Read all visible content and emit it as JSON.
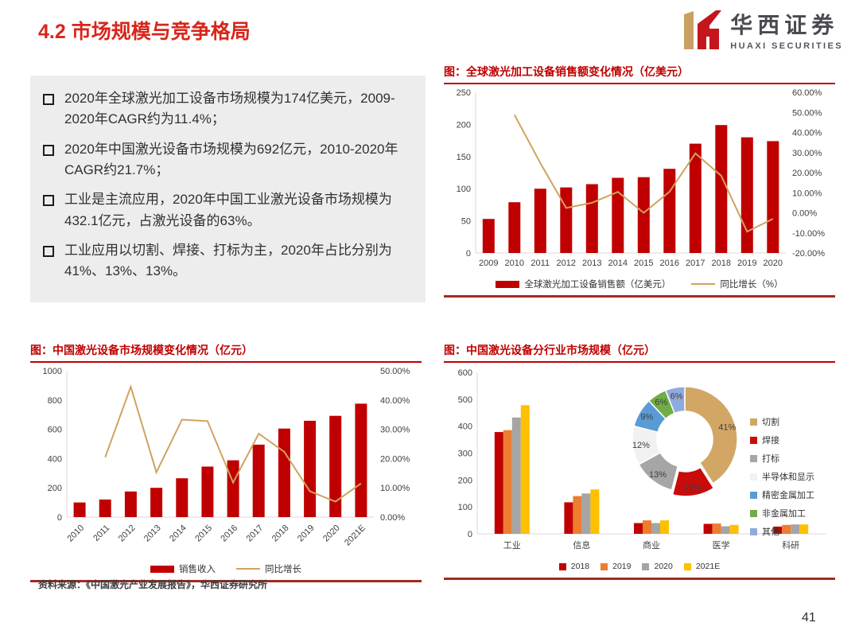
{
  "page": {
    "title": "4.2 市场规模与竞争格局",
    "source_note": "资料来源：《中国激光产业发展报告》，华西证券研究所",
    "page_number": "41"
  },
  "logo": {
    "cn": "华西证券",
    "en": "HUAXI SECURITIES"
  },
  "bullets": [
    "2020年全球激光加工设备市场规模为174亿美元，2009-2020年CAGR约为11.4%；",
    "2020年中国激光设备市场规模为692亿元，2010-2020年CAGR约21.7%；",
    "工业是主流应用，2020年中国工业激光设备市场规模为432.1亿元，占激光设备的63%。",
    "工业应用以切割、焊接、打标为主，2020年占比分别为41%、13%、13%。"
  ],
  "colors": {
    "accent_red": "#c00000",
    "title_red": "#d8261b",
    "line_tan": "#d0a35e",
    "rule_close": "#a32a22",
    "box_gray": "#ededed",
    "logo_gold": "#c9a063",
    "logo_red": "#c5161d"
  },
  "chart_data": [
    {
      "id": "global-laser-sales",
      "type": "bar+line",
      "title": "图：全球激光加工设备销售额变化情况（亿美元）",
      "categories": [
        "2009",
        "2010",
        "2011",
        "2012",
        "2013",
        "2014",
        "2015",
        "2016",
        "2017",
        "2018",
        "2019",
        "2020"
      ],
      "series": [
        {
          "name": "全球激光加工设备销售额（亿美元）",
          "type": "bar",
          "axis": "left",
          "color": "#c00000",
          "values": [
            53,
            79,
            100,
            102,
            107,
            117,
            118,
            131,
            170,
            199,
            180,
            174
          ]
        },
        {
          "name": "同比增长（%）",
          "type": "line",
          "axis": "right",
          "color": "#d0a35e",
          "values": [
            null,
            48.8,
            24.8,
            2.4,
            5.0,
            10.4,
            0.0,
            10.5,
            29.6,
            18.4,
            -9.4,
            -3.0
          ]
        }
      ],
      "left_axis": {
        "min": 0,
        "max": 250,
        "step": 50
      },
      "right_axis": {
        "min": -20,
        "max": 60,
        "step": 10
      },
      "legend_position": "bottom"
    },
    {
      "id": "china-laser-market",
      "type": "bar+line",
      "title": "图：中国激光设备市场规模变化情况（亿元）",
      "categories": [
        "2010",
        "2011",
        "2012",
        "2013",
        "2014",
        "2015",
        "2016",
        "2017",
        "2018",
        "2019",
        "2020",
        "2021E"
      ],
      "series": [
        {
          "name": "销售收入",
          "type": "bar",
          "axis": "left",
          "color": "#c00000",
          "values": [
            100,
            120,
            175,
            200,
            265,
            345,
            388,
            495,
            605,
            658,
            692,
            775
          ]
        },
        {
          "name": "同比增长",
          "type": "line",
          "axis": "right",
          "color": "#d0a35e",
          "values": [
            null,
            20.5,
            44.5,
            15.3,
            33.3,
            32.8,
            11.8,
            28.5,
            22.3,
            8.8,
            5.3,
            11.5
          ]
        }
      ],
      "left_axis": {
        "min": 0,
        "max": 1000,
        "step": 200
      },
      "right_axis": {
        "min": 0,
        "max": 50,
        "step": 10
      },
      "legend_position": "bottom",
      "rotated_labels": true
    },
    {
      "id": "china-laser-by-industry",
      "type": "grouped-bar",
      "title": "图：中国激光设备分行业市场规模（亿元）",
      "categories": [
        "工业",
        "信息",
        "商业",
        "医学",
        "科研"
      ],
      "series": [
        {
          "name": "2018",
          "color": "#c00000",
          "values": [
            378,
            117,
            40,
            37,
            27
          ]
        },
        {
          "name": "2019",
          "color": "#ed7d31",
          "values": [
            385,
            140,
            50,
            38,
            33
          ]
        },
        {
          "name": "2020",
          "color": "#a5a5a5",
          "values": [
            432,
            150,
            40,
            28,
            35
          ]
        },
        {
          "name": "2021E",
          "color": "#ffc000",
          "values": [
            478,
            165,
            50,
            33,
            35
          ]
        }
      ],
      "left_axis": {
        "min": 0,
        "max": 600,
        "step": 100
      },
      "legend_position": "bottom",
      "donut": {
        "type": "pie",
        "labels": [
          "切割",
          "焊接",
          "打标",
          "半导体和显示",
          "精密金属加工",
          "非金属加工",
          "其他"
        ],
        "values": [
          41,
          13,
          13,
          12,
          9,
          6,
          6
        ],
        "unit": "%",
        "colors": [
          "#d2a765",
          "#c80b0b",
          "#a6a6a6",
          "#f1f1f1",
          "#5b9bd5",
          "#70ad47",
          "#8faadc"
        ],
        "label_colors": [
          "#3f3f3f",
          "#8b1515",
          "#3f3f3f",
          "#3f3f3f",
          "#2f2f2f",
          "#2f2f2f",
          "#3f3f3f"
        ],
        "explode": [
          false,
          true,
          false,
          false,
          false,
          false,
          false
        ]
      }
    }
  ]
}
